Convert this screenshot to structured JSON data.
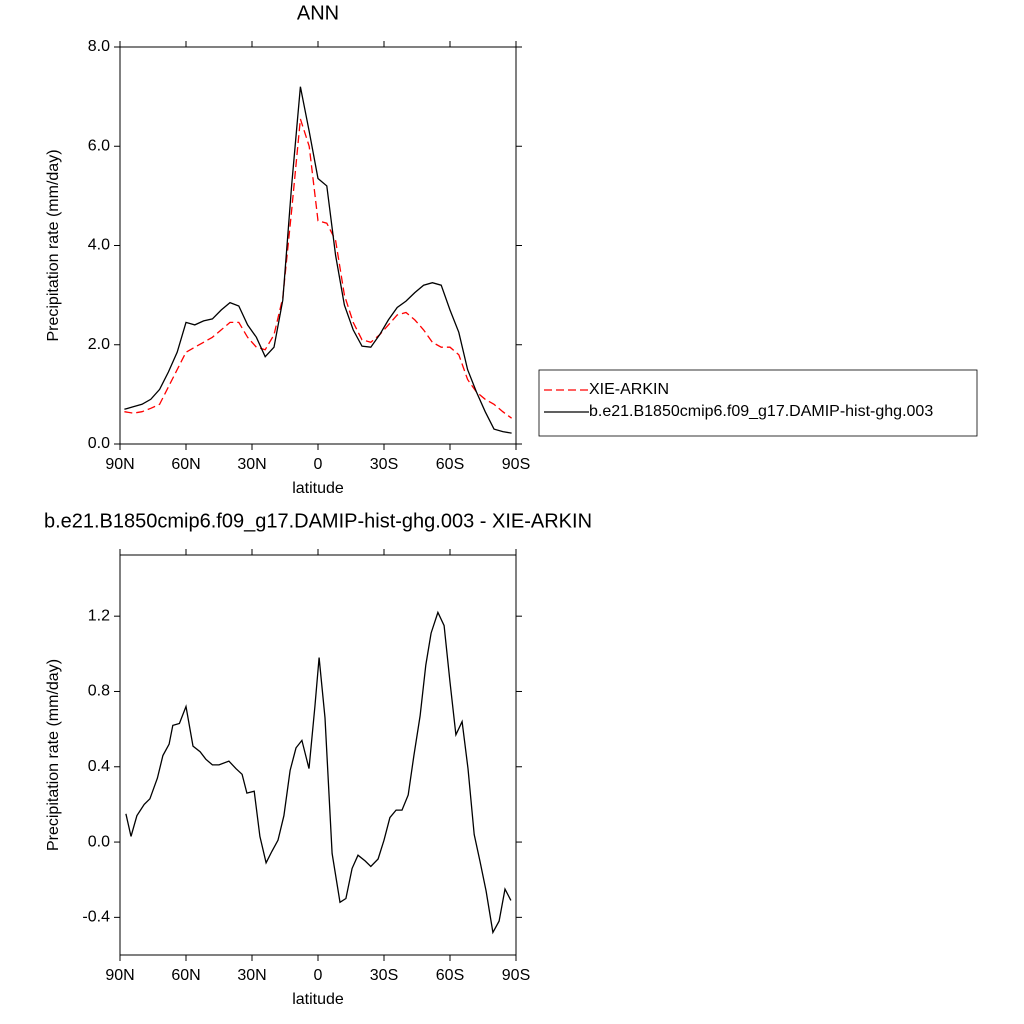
{
  "chart_data": [
    {
      "type": "line",
      "title": "ANN",
      "x_label": "latitude",
      "y_label": "Precipitation rate (mm/day)",
      "x": [
        88,
        84,
        80,
        76,
        72,
        68,
        64,
        60,
        56,
        52,
        48,
        44,
        40,
        36,
        32,
        28,
        24,
        20,
        16,
        12,
        8,
        4,
        0,
        -4,
        -8,
        -12,
        -16,
        -20,
        -24,
        -28,
        -32,
        -36,
        -40,
        -44,
        -48,
        -52,
        -56,
        -60,
        -64,
        -68,
        -72,
        -76,
        -80,
        -84,
        -88
      ],
      "series": [
        {
          "name": "XIE-ARKIN",
          "color": "#ff0000",
          "dash": true,
          "values": [
            0.65,
            0.62,
            0.65,
            0.72,
            0.8,
            1.15,
            1.5,
            1.85,
            1.95,
            2.05,
            2.15,
            2.3,
            2.45,
            2.45,
            2.15,
            1.95,
            1.9,
            2.2,
            2.95,
            4.7,
            6.55,
            6.0,
            4.5,
            4.45,
            4.1,
            3.0,
            2.45,
            2.1,
            2.05,
            2.2,
            2.4,
            2.6,
            2.65,
            2.5,
            2.3,
            2.05,
            1.95,
            1.95,
            1.8,
            1.3,
            1.05,
            0.9,
            0.8,
            0.65,
            0.52
          ]
        },
        {
          "name": "b.e21.B1850cmip6.f09_g17.DAMIP-hist-ghg.003",
          "color": "#000000",
          "dash": false,
          "values": [
            0.7,
            0.75,
            0.8,
            0.9,
            1.1,
            1.45,
            1.85,
            2.45,
            2.4,
            2.48,
            2.52,
            2.7,
            2.85,
            2.78,
            2.4,
            2.15,
            1.76,
            1.95,
            2.9,
            5.2,
            7.2,
            6.3,
            5.35,
            5.2,
            3.8,
            2.8,
            2.3,
            1.97,
            1.95,
            2.2,
            2.5,
            2.75,
            2.88,
            3.05,
            3.2,
            3.25,
            3.2,
            2.7,
            2.25,
            1.5,
            1.05,
            0.65,
            0.3,
            0.25,
            0.22
          ]
        }
      ],
      "xlim": [
        90,
        -90
      ],
      "xticks": [
        {
          "value": 90,
          "label": "90N"
        },
        {
          "value": 60,
          "label": "60N"
        },
        {
          "value": 30,
          "label": "30N"
        },
        0,
        {
          "value": -30,
          "label": "30S"
        },
        {
          "value": -60,
          "label": "60S"
        },
        {
          "value": -90,
          "label": "90S"
        }
      ],
      "ylim": [
        0,
        8
      ],
      "yticks": [
        {
          "value": 0,
          "label": "0.0"
        },
        {
          "value": 2,
          "label": "2.0"
        },
        {
          "value": 4,
          "label": "4.0"
        },
        {
          "value": 6,
          "label": "6.0"
        },
        {
          "value": 8,
          "label": "8.0"
        }
      ],
      "legend": "right"
    },
    {
      "type": "line",
      "title": "b.e21.B1850cmip6.f09_g17.DAMIP-hist-ghg.003 - XIE-ARKIN",
      "x_label": "latitude",
      "y_label": "Precipitation rate (mm/day)",
      "x": [
        87.3,
        85,
        82.3,
        79,
        76.4,
        73,
        70.5,
        67.7,
        66,
        63,
        60,
        56.8,
        53.6,
        51,
        48,
        45,
        40.5,
        37.3,
        34.5,
        32.3,
        29,
        26.4,
        23.6,
        21,
        18.2,
        15.5,
        12.7,
        10,
        7.3,
        4.1,
        1.4,
        -0.5,
        -3.2,
        -6.4,
        -10,
        -12.7,
        -15.5,
        -18.2,
        -21.4,
        -24,
        -27.3,
        -30,
        -32.7,
        -35.5,
        -38.2,
        -41,
        -43.6,
        -46.4,
        -49,
        -51.4,
        -54.5,
        -57.3,
        -60,
        -62.7,
        -65.5,
        -68.2,
        -71,
        -73.6,
        -76.4,
        -79.5,
        -82.3,
        -85,
        -87.7
      ],
      "series": [
        {
          "name": null,
          "color": "#000000",
          "dash": false,
          "values": [
            0.15,
            0.03,
            0.14,
            0.2,
            0.23,
            0.34,
            0.46,
            0.52,
            0.62,
            0.63,
            0.72,
            0.51,
            0.48,
            0.44,
            0.41,
            0.41,
            0.43,
            0.39,
            0.36,
            0.26,
            0.27,
            0.03,
            -0.11,
            -0.05,
            0.01,
            0.14,
            0.38,
            0.5,
            0.54,
            0.39,
            0.72,
            0.98,
            0.66,
            -0.06,
            -0.32,
            -0.3,
            -0.14,
            -0.07,
            -0.1,
            -0.13,
            -0.09,
            0.01,
            0.13,
            0.17,
            0.17,
            0.25,
            0.46,
            0.67,
            0.94,
            1.11,
            1.22,
            1.15,
            0.85,
            0.57,
            0.64,
            0.39,
            0.04,
            -0.1,
            -0.26,
            -0.48,
            -0.42,
            -0.25,
            -0.31
          ]
        }
      ],
      "xlim": [
        90,
        -90
      ],
      "xticks": [
        {
          "value": 90,
          "label": "90N"
        },
        {
          "value": 60,
          "label": "60N"
        },
        {
          "value": 30,
          "label": "30N"
        },
        0,
        {
          "value": -30,
          "label": "30S"
        },
        {
          "value": -60,
          "label": "60S"
        },
        {
          "value": -90,
          "label": "90S"
        }
      ],
      "ylim": [
        -0.6,
        1.525
      ],
      "yticks": [
        -0.4,
        {
          "value": 0,
          "label": "0.0"
        },
        0.4,
        0.8,
        1.2
      ]
    }
  ]
}
